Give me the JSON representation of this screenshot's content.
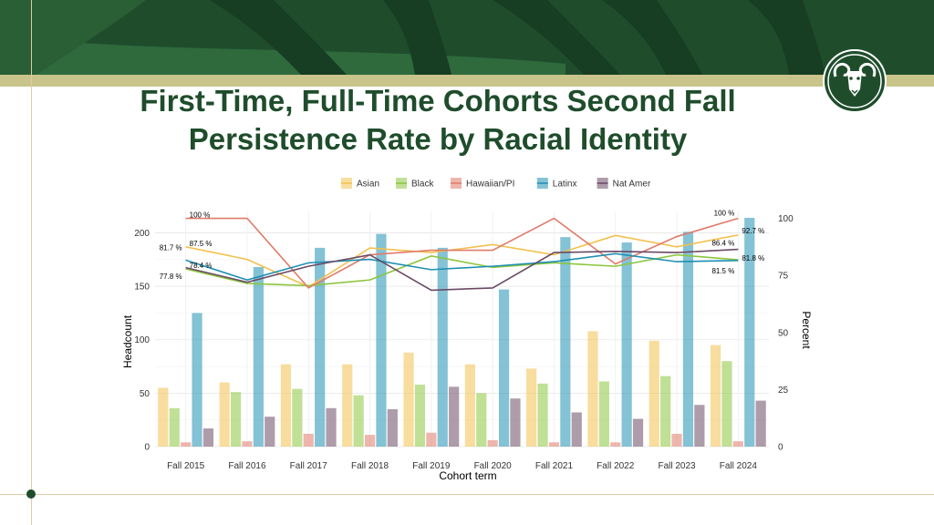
{
  "title": "First-Time, Full-Time Cohorts Second Fall Persistence Rate by Racial Identity",
  "colors": {
    "brand_green": "#1f4d2c",
    "gold": "#c9c48a",
    "Asian": "#f2c14e",
    "Black": "#8cc63f",
    "Hawaiian/PI": "#e07a6a",
    "Latinx": "#1f8fb3",
    "Nat Amer": "#6b4a64"
  },
  "logo_icon": "ram-head-icon",
  "chart_data": {
    "type": "bar",
    "xlabel": "Cohort term",
    "ylabel": "Headcount",
    "y2label": "Percent",
    "ylim": [
      0,
      220
    ],
    "y2lim": [
      0,
      103
    ],
    "yticks": [
      0,
      50,
      100,
      150,
      200
    ],
    "y2ticks": [
      0,
      25,
      50,
      75,
      100
    ],
    "legend_position": "top",
    "grid": true,
    "categories": [
      "Fall 2015",
      "Fall 2016",
      "Fall 2017",
      "Fall 2018",
      "Fall 2019",
      "Fall 2020",
      "Fall 2021",
      "Fall 2022",
      "Fall 2023",
      "Fall 2024"
    ],
    "series": [
      {
        "name": "Asian",
        "headcount": [
          55,
          60,
          77,
          77,
          88,
          77,
          73,
          108,
          99,
          95
        ],
        "percent": [
          87.5,
          82,
          70,
          87,
          85,
          88.5,
          84,
          92.5,
          87.5,
          92.7
        ]
      },
      {
        "name": "Black",
        "headcount": [
          36,
          51,
          54,
          48,
          58,
          50,
          59,
          61,
          66,
          80
        ],
        "percent": [
          77.8,
          71.5,
          70.5,
          73,
          83.5,
          78.5,
          80.5,
          79,
          84,
          81.8
        ]
      },
      {
        "name": "Hawaiian/PI",
        "headcount": [
          4,
          5,
          12,
          11,
          13,
          6,
          4,
          4,
          12,
          5
        ],
        "percent": [
          100,
          100,
          69.5,
          84,
          86,
          86,
          100,
          80,
          92,
          100
        ]
      },
      {
        "name": "Latinx",
        "headcount": [
          125,
          168,
          186,
          199,
          186,
          147,
          196,
          191,
          201,
          214
        ],
        "percent": [
          81.7,
          73,
          80.5,
          82,
          77.5,
          79,
          81,
          84.5,
          81,
          81.5
        ]
      },
      {
        "name": "Nat Amer",
        "headcount": [
          17,
          28,
          36,
          35,
          56,
          45,
          32,
          26,
          39,
          43
        ],
        "percent": [
          78.4,
          72,
          79,
          84,
          68.5,
          69.5,
          85,
          85.5,
          85,
          86.4
        ]
      }
    ],
    "annotations": {
      "Fall 2015": [
        "100 %",
        "87.5 %",
        "81.7 %",
        "78.4 %",
        "77.8 %"
      ],
      "Fall 2024": [
        "100 %",
        "92.7 %",
        "86.4 %",
        "81.8 %",
        "81.5 %"
      ]
    }
  }
}
